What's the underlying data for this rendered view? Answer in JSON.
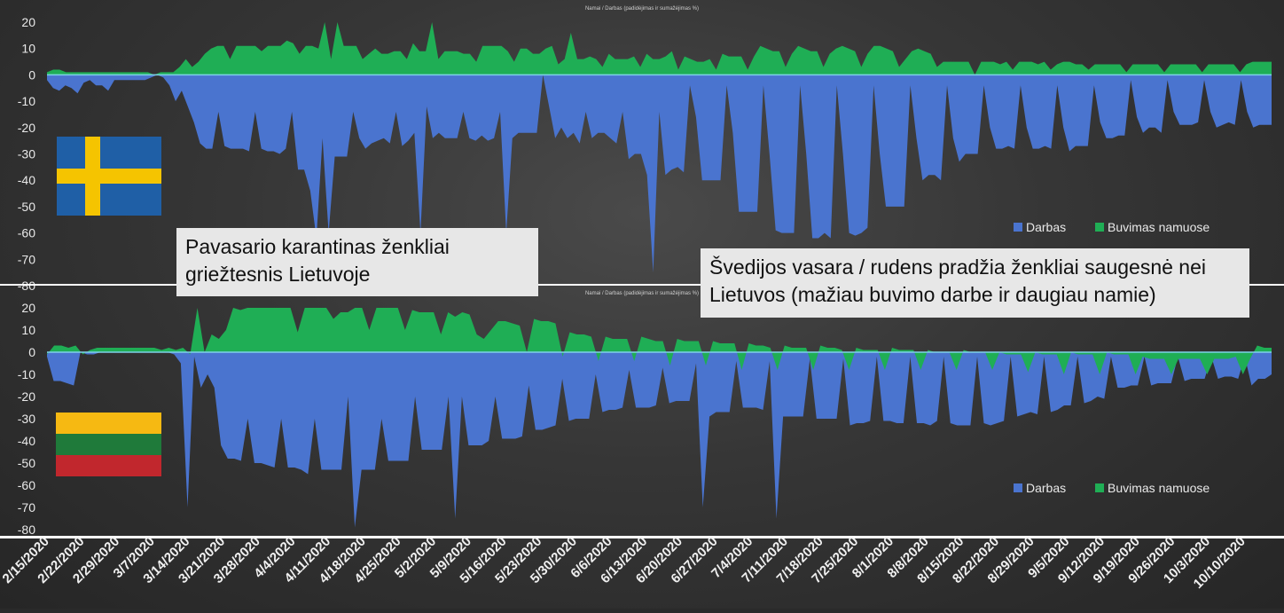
{
  "colors": {
    "darbas": "#4a74cf",
    "buvimas": "#1fae55",
    "zero": "#7fd0e8",
    "grid": "#6a6a6a",
    "text": "#e9e9e9"
  },
  "annotations": {
    "spring": [
      "Pavasario karantinas ženkliai",
      "griežtesnis Lietuvoje"
    ],
    "summer": [
      "Švedijos vasara / rudens pradžia ženkliai saugesnė nei",
      "Lietuvos (mažiau buvimo darbe ir daugiau namie)"
    ]
  },
  "flags": {
    "sweden": {
      "blue": "#1f5fa6",
      "cross": "#f5c400"
    },
    "lithuania": {
      "stripes": [
        "#f6b912",
        "#1f7a3a",
        "#c1272d"
      ]
    }
  },
  "chart_data": [
    {
      "type": "area",
      "title": "Namai / Darbas (padidėjimas ir sumažėjimas %)",
      "ylim": [
        -80,
        20
      ],
      "yticks": [
        20,
        10,
        0,
        -10,
        -20,
        -30,
        -40,
        -50,
        -60,
        -70,
        -80
      ],
      "legend_position": "right",
      "series": [
        {
          "name": "Darbas",
          "color": "#4a74cf",
          "values": [
            -2,
            -5,
            -6,
            -4,
            -5,
            -7,
            -3,
            -2,
            -4,
            -4,
            -6,
            -2,
            -2,
            -2,
            -2,
            -2,
            -2,
            -1,
            0,
            -1,
            -4,
            -10,
            -6,
            -12,
            -18,
            -26,
            -28,
            -28,
            -14,
            -27,
            -28,
            -28,
            -28,
            -29,
            -14,
            -28,
            -29,
            -29,
            -30,
            -28,
            -14,
            -36,
            -36,
            -44,
            -62,
            -24,
            -60,
            -31,
            -31,
            -31,
            -14,
            -24,
            -28,
            -26,
            -25,
            -24,
            -26,
            -14,
            -27,
            -25,
            -22,
            -60,
            -12,
            -24,
            -22,
            -24,
            -24,
            -24,
            -14,
            -24,
            -25,
            -23,
            -25,
            -24,
            -14,
            -60,
            -24,
            -22,
            -22,
            -22,
            -22,
            0,
            -12,
            -24,
            -20,
            -24,
            -22,
            -26,
            -14,
            -24,
            -22,
            -22,
            -24,
            -26,
            -14,
            -32,
            -30,
            -30,
            -38,
            -75,
            -14,
            -38,
            -36,
            -35,
            -37,
            -4,
            -16,
            -40,
            -40,
            -40,
            -40,
            -4,
            -22,
            -52,
            -52,
            -52,
            -52,
            -4,
            -30,
            -59,
            -60,
            -60,
            -60,
            -4,
            -30,
            -62,
            -62,
            -60,
            -62,
            -4,
            -30,
            -60,
            -61,
            -60,
            -58,
            -4,
            -30,
            -50,
            -50,
            -50,
            -50,
            -4,
            -24,
            -40,
            -38,
            -38,
            -40,
            -4,
            -24,
            -33,
            -30,
            -30,
            -30,
            -4,
            -20,
            -28,
            -28,
            -27,
            -28,
            -4,
            -20,
            -28,
            -28,
            -27,
            -28,
            -4,
            -20,
            -29,
            -27,
            -27,
            -27,
            -4,
            -18,
            -24,
            -24,
            -23,
            -23,
            -2,
            -16,
            -22,
            -20,
            -20,
            -22,
            -2,
            -14,
            -19,
            -19,
            -19,
            -18,
            -2,
            -14,
            -20,
            -19,
            -18,
            -19,
            -2,
            -14,
            -20,
            -19,
            -19,
            -19
          ]
        },
        {
          "name": "Buvimas namuose",
          "color": "#1fae55",
          "values": [
            1,
            2,
            2,
            1,
            1,
            1,
            1,
            1,
            1,
            1,
            1,
            1,
            1,
            1,
            1,
            1,
            1,
            0,
            1,
            1,
            1,
            3,
            6,
            3,
            5,
            8,
            10,
            11,
            11,
            6,
            11,
            11,
            11,
            11,
            9,
            11,
            11,
            11,
            13,
            12,
            8,
            11,
            11,
            10,
            20,
            6,
            20,
            11,
            11,
            11,
            6,
            8,
            10,
            8,
            8,
            9,
            9,
            6,
            12,
            9,
            9,
            20,
            6,
            9,
            9,
            9,
            8,
            8,
            5,
            11,
            11,
            11,
            11,
            9,
            5,
            10,
            10,
            8,
            8,
            10,
            11,
            4,
            6,
            16,
            6,
            6,
            7,
            6,
            3,
            8,
            6,
            6,
            6,
            7,
            3,
            8,
            6,
            6,
            7,
            9,
            2,
            7,
            6,
            5,
            5,
            6,
            2,
            8,
            7,
            7,
            7,
            2,
            7,
            11,
            10,
            9,
            9,
            3,
            8,
            11,
            10,
            9,
            9,
            3,
            8,
            10,
            11,
            10,
            9,
            3,
            8,
            11,
            11,
            10,
            9,
            3,
            6,
            9,
            10,
            9,
            8,
            3,
            5,
            5,
            5,
            5,
            5,
            0,
            5,
            5,
            5,
            4,
            5,
            2,
            5,
            5,
            5,
            4,
            5,
            2,
            4,
            5,
            5,
            4,
            4,
            2,
            4,
            4,
            4,
            4,
            4,
            1,
            4,
            4,
            4,
            4,
            4,
            1,
            4,
            4,
            4,
            4,
            4,
            1,
            4,
            4,
            4,
            4,
            4,
            1,
            4,
            5,
            5,
            5,
            5
          ]
        }
      ]
    },
    {
      "type": "area",
      "title": "Namai / Darbas (padidėjimas ir sumažėjimas %)",
      "ylim": [
        -80,
        20
      ],
      "yticks": [
        20,
        10,
        0,
        -10,
        -20,
        -30,
        -40,
        -50,
        -60,
        -70,
        -80
      ],
      "legend_position": "right",
      "series": [
        {
          "name": "Darbas",
          "color": "#4a74cf",
          "values": [
            -2,
            -13,
            -13,
            -14,
            -15,
            0,
            -1,
            -1,
            0,
            0,
            0,
            0,
            0,
            0,
            0,
            0,
            0,
            0,
            0,
            -1,
            -5,
            -70,
            -2,
            -16,
            -10,
            -16,
            -42,
            -48,
            -48,
            -49,
            -30,
            -50,
            -50,
            -51,
            -52,
            -30,
            -52,
            -52,
            -53,
            -55,
            -30,
            -53,
            -53,
            -53,
            -53,
            -20,
            -79,
            -53,
            -53,
            -53,
            -30,
            -49,
            -49,
            -49,
            -49,
            -20,
            -44,
            -44,
            -44,
            -44,
            -20,
            -75,
            -20,
            -42,
            -42,
            -42,
            -40,
            -20,
            -39,
            -39,
            -39,
            -38,
            -15,
            -35,
            -35,
            -34,
            -33,
            -12,
            -31,
            -30,
            -30,
            -30,
            -10,
            -27,
            -26,
            -26,
            -25,
            -8,
            -25,
            -25,
            -25,
            -24,
            -7,
            -23,
            -22,
            -22,
            -22,
            -5,
            -70,
            -29,
            -27,
            -27,
            -27,
            -4,
            -25,
            -25,
            -25,
            -26,
            -4,
            -75,
            -29,
            -29,
            -29,
            -29,
            -3,
            -30,
            -30,
            -30,
            -30,
            -3,
            -33,
            -32,
            -32,
            -31,
            -2,
            -31,
            -31,
            -32,
            -32,
            -2,
            -32,
            -32,
            -33,
            -31,
            -2,
            -32,
            -33,
            -33,
            -33,
            -2,
            -32,
            -33,
            -32,
            -31,
            -2,
            -29,
            -28,
            -27,
            -28,
            -2,
            -27,
            -26,
            -24,
            -24,
            -2,
            -23,
            -22,
            -20,
            -21,
            -2,
            -16,
            -16,
            -15,
            -15,
            -2,
            -15,
            -14,
            -14,
            -14,
            -2,
            -13,
            -12,
            -12,
            -12,
            -2,
            -12,
            -11,
            -11,
            -12,
            -2,
            -15,
            -12,
            -12,
            -10
          ]
        },
        {
          "name": "Buvimas namuose",
          "color": "#1fae55",
          "values": [
            -1,
            3,
            3,
            2,
            3,
            -1,
            1,
            2,
            2,
            2,
            2,
            2,
            2,
            2,
            2,
            2,
            1,
            2,
            1,
            2,
            -1,
            20,
            0,
            8,
            6,
            10,
            20,
            19,
            20,
            20,
            20,
            20,
            20,
            20,
            20,
            9,
            20,
            20,
            20,
            20,
            15,
            18,
            18,
            20,
            20,
            10,
            20,
            20,
            20,
            20,
            10,
            19,
            18,
            18,
            18,
            8,
            18,
            16,
            18,
            17,
            8,
            6,
            10,
            14,
            14,
            13,
            12,
            0,
            15,
            14,
            14,
            13,
            -2,
            9,
            8,
            8,
            7,
            -4,
            7,
            6,
            6,
            6,
            -4,
            7,
            6,
            5,
            5,
            -6,
            6,
            5,
            5,
            5,
            -6,
            5,
            4,
            4,
            4,
            -8,
            4,
            3,
            3,
            2,
            -8,
            3,
            2,
            2,
            2,
            -8,
            3,
            2,
            2,
            1,
            -8,
            2,
            1,
            1,
            1,
            -8,
            2,
            1,
            1,
            1,
            -8,
            1,
            0,
            0,
            0,
            -8,
            1,
            0,
            0,
            0,
            -8,
            0,
            -1,
            -1,
            -1,
            -9,
            0,
            -1,
            -1,
            -1,
            -10,
            0,
            -1,
            -1,
            -1,
            -10,
            0,
            -1,
            -1,
            -1,
            -10,
            -2,
            -3,
            -3,
            -3,
            -10,
            -3,
            -3,
            -3,
            -3,
            -10,
            -3,
            -3,
            -3,
            -2,
            -10,
            -3,
            3,
            2,
            2
          ]
        }
      ]
    }
  ],
  "shared_x": {
    "labels": [
      "2/15/2020",
      "2/22/2020",
      "2/29/2020",
      "3/7/2020",
      "3/14/2020",
      "3/21/2020",
      "3/28/2020",
      "4/4/2020",
      "4/11/2020",
      "4/18/2020",
      "4/25/2020",
      "5/2/2020",
      "5/9/2020",
      "5/16/2020",
      "5/23/2020",
      "5/30/2020",
      "6/6/2020",
      "6/13/2020",
      "6/20/2020",
      "6/27/2020",
      "7/4/2020",
      "7/11/2020",
      "7/18/2020",
      "7/25/2020",
      "8/1/2020",
      "8/8/2020",
      "8/15/2020",
      "8/22/2020",
      "8/29/2020",
      "9/5/2020",
      "9/12/2020",
      "9/19/2020",
      "9/26/2020",
      "10/3/2020",
      "10/10/2020"
    ]
  }
}
